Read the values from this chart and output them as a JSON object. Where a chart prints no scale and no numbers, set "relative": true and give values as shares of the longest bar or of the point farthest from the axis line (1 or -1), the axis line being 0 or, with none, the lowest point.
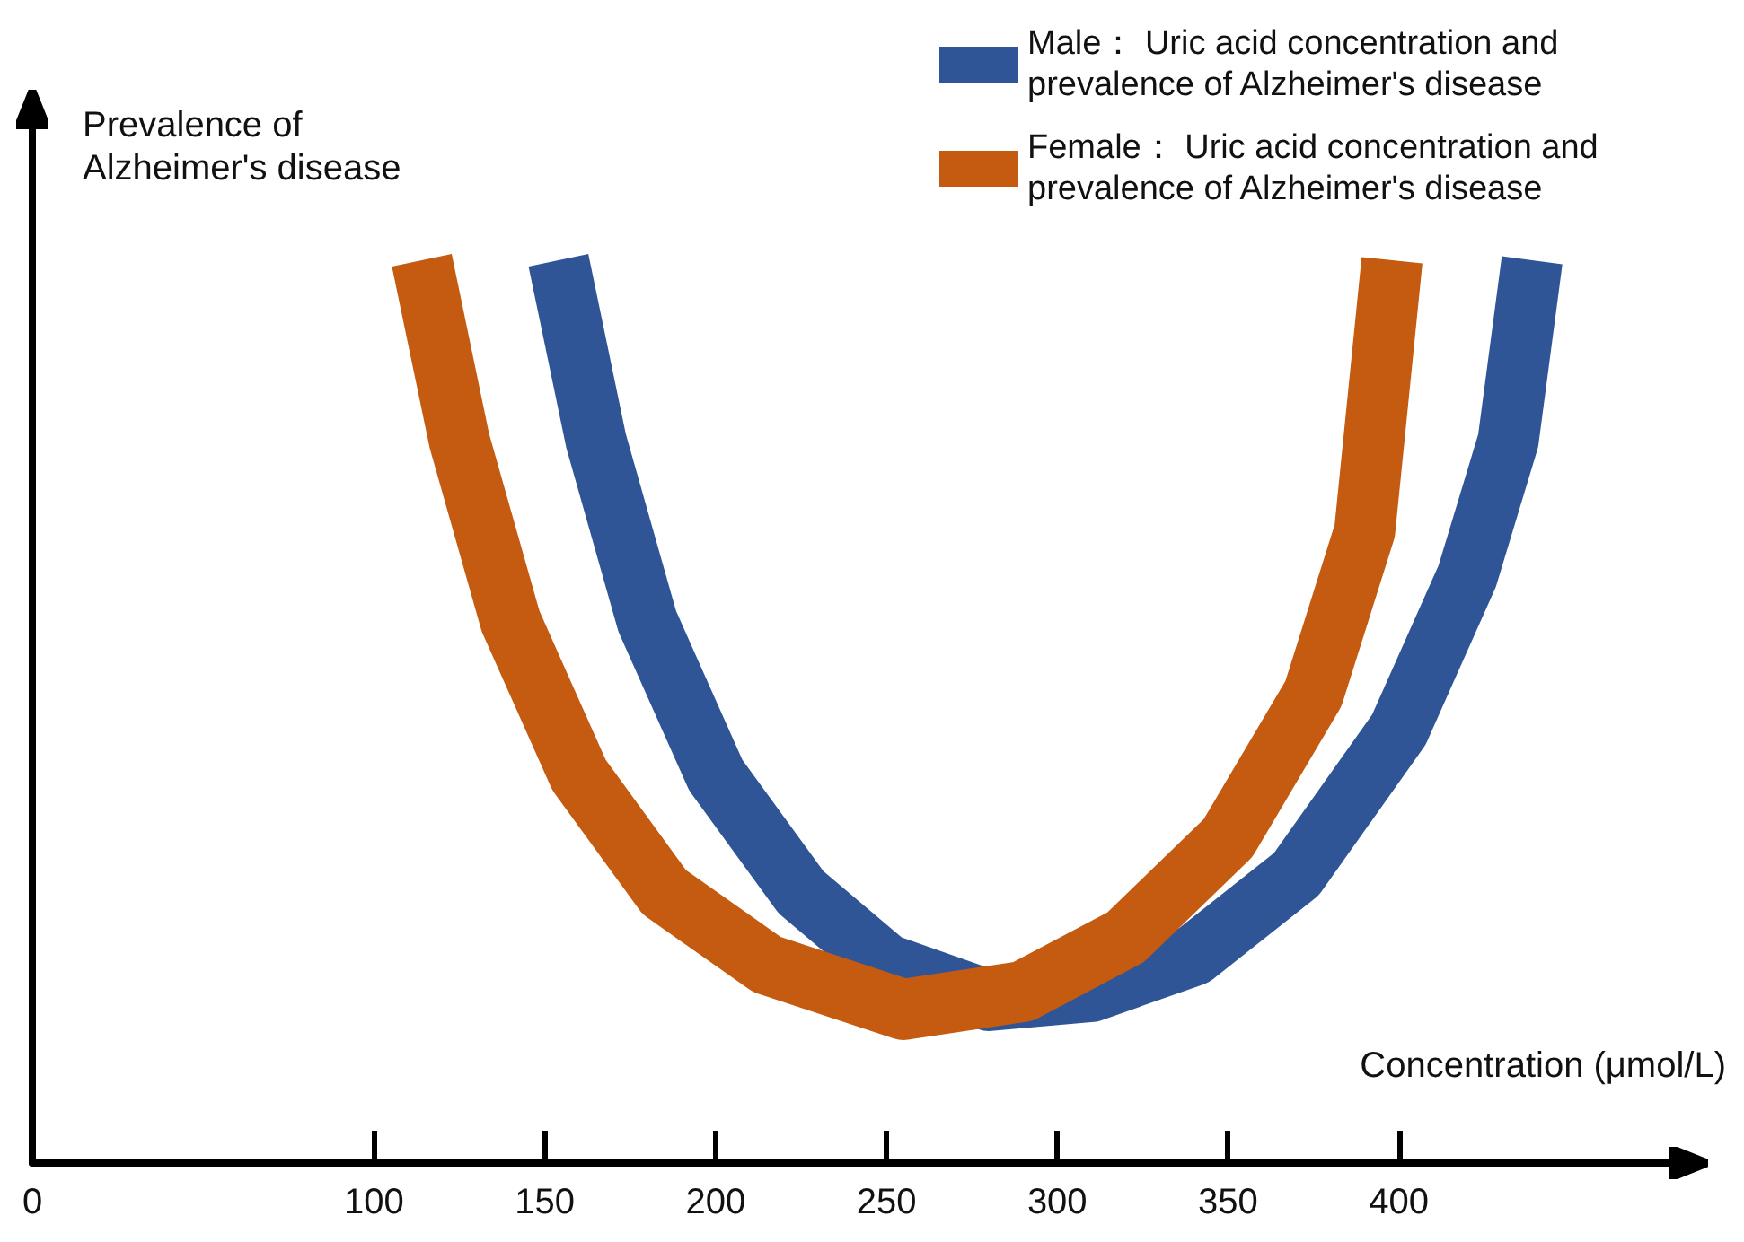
{
  "chart_data": {
    "type": "line",
    "relative": true,
    "ylabel": "Prevalence of Alzheimer's disease",
    "xlabel": "Concentration (μmol/L)",
    "xlim": [
      0,
      480
    ],
    "xticks": [
      0,
      100,
      150,
      200,
      250,
      300,
      350,
      400
    ],
    "marker": "none",
    "grid": false,
    "legend": "top right",
    "series": [
      {
        "name": "Male： Uric acid concentration and prevalence of Alzheimer's disease",
        "color": "#2f5597",
        "x": [
          154,
          165,
          180,
          200,
          225,
          250,
          280,
          310,
          340,
          370,
          400,
          420,
          432,
          439
        ],
        "values": [
          1.0,
          0.8,
          0.6,
          0.43,
          0.3,
          0.22,
          0.18,
          0.19,
          0.23,
          0.32,
          0.48,
          0.65,
          0.8,
          1.0
        ]
      },
      {
        "name": "Female： Uric acid concentration and prevalence of Alzheimer's disease",
        "color": "#c55a11",
        "x": [
          114,
          125,
          140,
          160,
          185,
          215,
          255,
          290,
          320,
          350,
          375,
          390,
          398
        ],
        "values": [
          1.0,
          0.8,
          0.6,
          0.43,
          0.3,
          0.22,
          0.17,
          0.19,
          0.25,
          0.36,
          0.52,
          0.7,
          1.0
        ]
      }
    ]
  }
}
